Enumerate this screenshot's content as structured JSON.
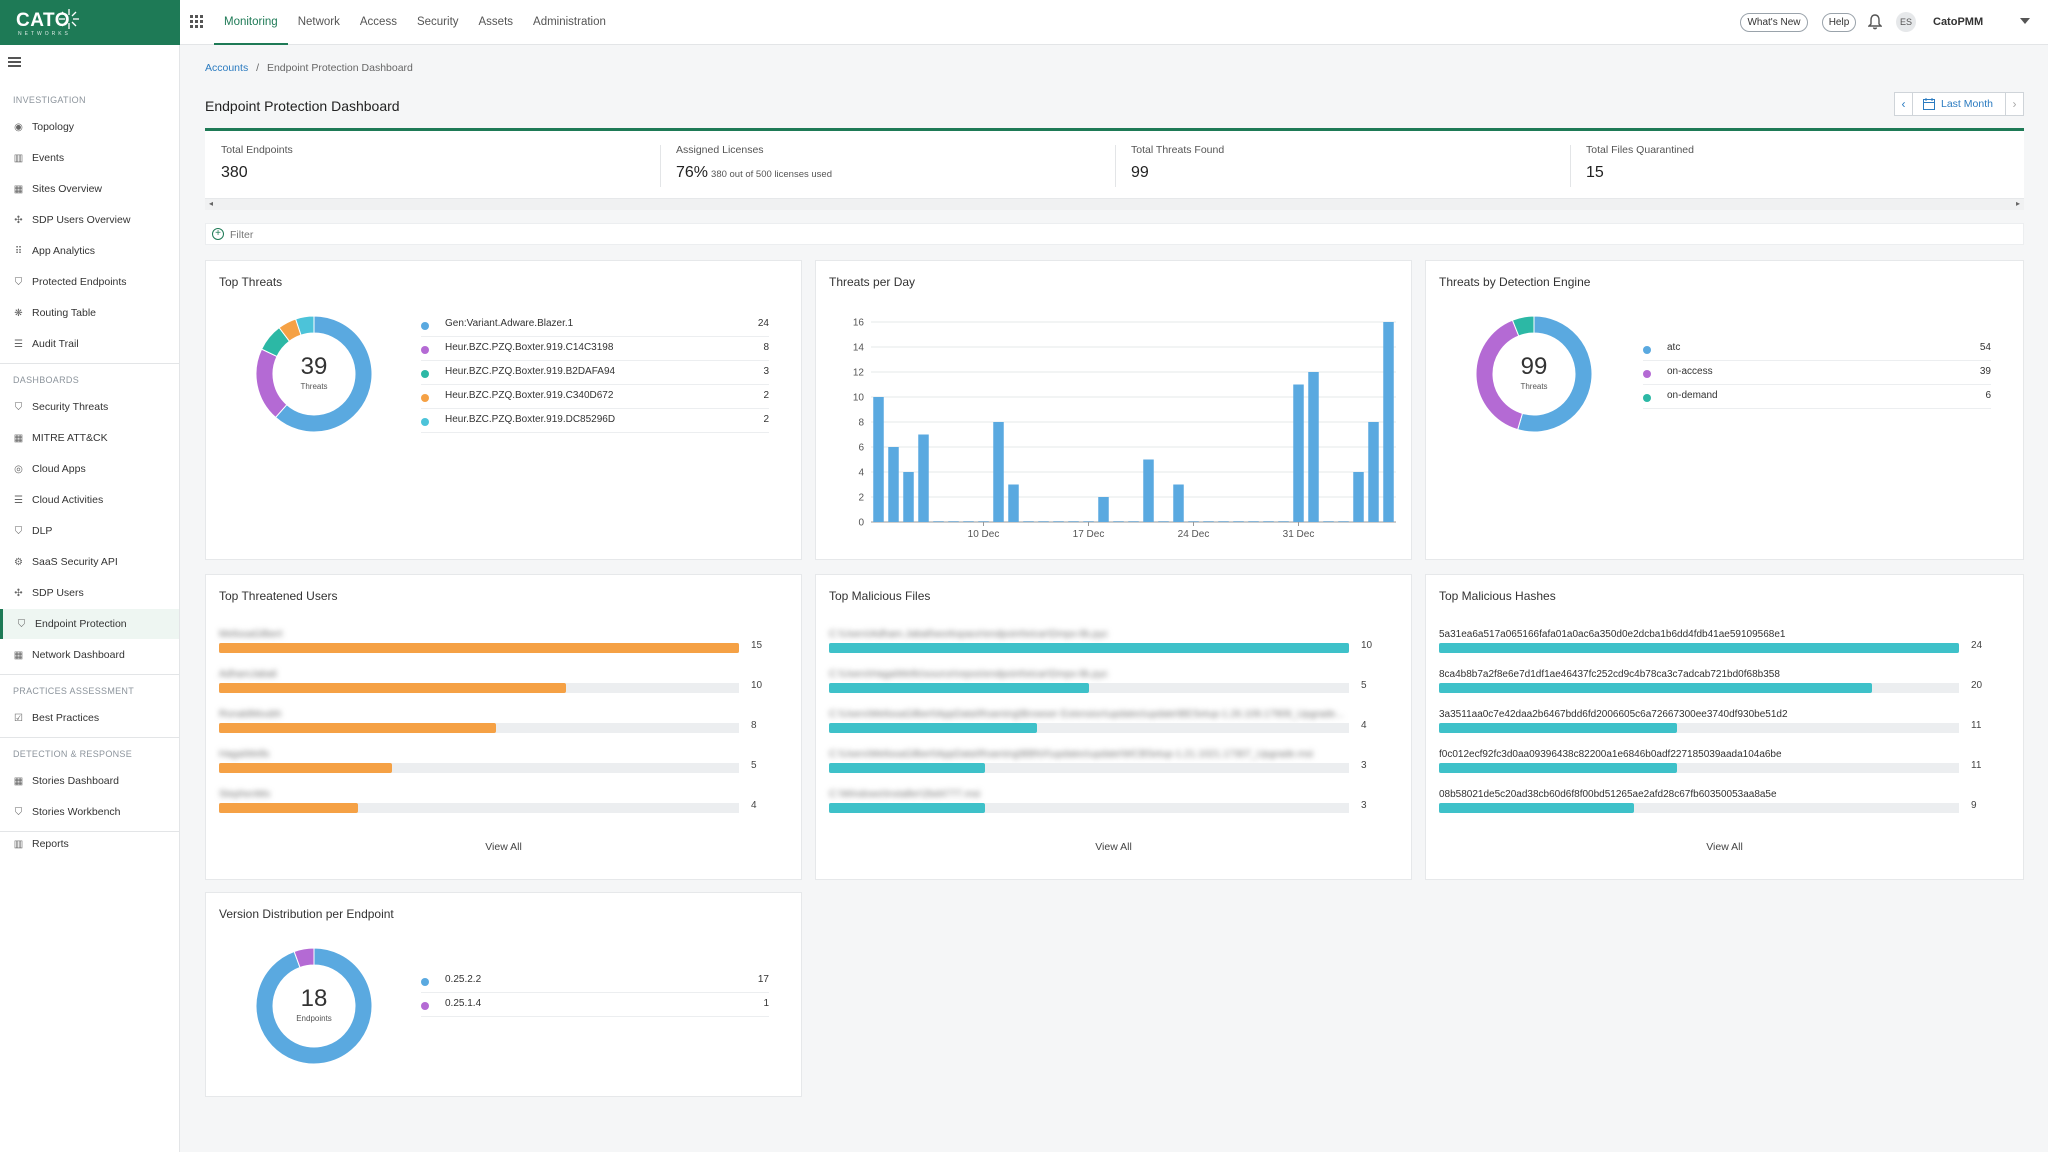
{
  "app": {
    "logo": "CATO",
    "logo_sub": "NETWORKS",
    "brand_color": "#1e7a56"
  },
  "topnav": {
    "items": [
      "Monitoring",
      "Network",
      "Access",
      "Security",
      "Assets",
      "Administration"
    ],
    "active": "Monitoring",
    "whats_new": "What's New",
    "help": "Help",
    "avatar_initials": "ES",
    "account": "CatoPMM"
  },
  "sidebar": {
    "sections": {
      "investigation": "INVESTIGATION",
      "dashboards": "DASHBOARDS",
      "practices": "PRACTICES ASSESSMENT",
      "detection": "DETECTION & RESPONSE"
    },
    "investigation_items": [
      "Topology",
      "Events",
      "Sites Overview",
      "SDP Users Overview",
      "App Analytics",
      "Protected Endpoints",
      "Routing Table",
      "Audit Trail"
    ],
    "dashboard_items": [
      "Security Threats",
      "MITRE ATT&CK",
      "Cloud Apps",
      "Cloud Activities",
      "DLP",
      "SaaS Security API",
      "SDP Users",
      "Endpoint Protection",
      "Network Dashboard"
    ],
    "practices_items": [
      "Best Practices"
    ],
    "detection_items": [
      "Stories Dashboard",
      "Stories Workbench"
    ],
    "reports": "Reports",
    "active": "Endpoint Protection"
  },
  "breadcrumb": {
    "root": "Accounts",
    "sep": "/",
    "current": "Endpoint Protection Dashboard"
  },
  "page": {
    "title": "Endpoint Protection Dashboard"
  },
  "time_range": {
    "label": "Last Month"
  },
  "kpis": {
    "total_endpoints": {
      "label": "Total Endpoints",
      "value": "380"
    },
    "assigned_licenses": {
      "label": "Assigned Licenses",
      "value": "76%",
      "sub": "380 out of 500 licenses used"
    },
    "total_threats": {
      "label": "Total Threats Found",
      "value": "99"
    },
    "files_quarantined": {
      "label": "Total Files Quarantined",
      "value": "15"
    }
  },
  "filter": {
    "label": "Filter"
  },
  "top_threats": {
    "title": "Top Threats",
    "center_value": "39",
    "center_label": "Threats",
    "items": [
      {
        "name": "Gen:Variant.Adware.Blazer.1",
        "value": 24,
        "color": "#5aa9e0"
      },
      {
        "name": "Heur.BZC.PZQ.Boxter.919.C14C3198",
        "value": 8,
        "color": "#b46ad4"
      },
      {
        "name": "Heur.BZC.PZQ.Boxter.919.B2DAFA94",
        "value": 3,
        "color": "#2cb8a5"
      },
      {
        "name": "Heur.BZC.PZQ.Boxter.919.C340D672",
        "value": 2,
        "color": "#f5a145"
      },
      {
        "name": "Heur.BZC.PZQ.Boxter.919.DC85296D",
        "value": 2,
        "color": "#4cc3d9"
      }
    ]
  },
  "threats_per_day": {
    "title": "Threats per Day"
  },
  "chart_data": {
    "type": "bar",
    "title": "Threats per Day",
    "x_ticks": [
      "10 Dec",
      "17 Dec",
      "24 Dec",
      "31 Dec"
    ],
    "x_tick_index": [
      7,
      14,
      21,
      28
    ],
    "values": [
      10,
      6,
      4,
      7,
      0,
      0,
      0,
      0,
      8,
      3,
      0,
      0,
      0,
      0,
      0,
      2,
      0,
      0,
      5,
      0,
      3,
      0,
      0,
      0,
      0,
      0,
      0,
      0,
      11,
      12,
      0,
      0,
      4,
      8,
      16
    ],
    "ylim": [
      0,
      16
    ],
    "y_ticks": [
      0,
      2,
      4,
      6,
      8,
      10,
      12,
      14,
      16
    ],
    "color": "#5aa9e0",
    "grid": true
  },
  "detection_engine": {
    "title": "Threats by Detection Engine",
    "center_value": "99",
    "center_label": "Threats",
    "items": [
      {
        "name": "atc",
        "value": 54,
        "color": "#5aa9e0"
      },
      {
        "name": "on-access",
        "value": 39,
        "color": "#b46ad4"
      },
      {
        "name": "on-demand",
        "value": 6,
        "color": "#2cb8a5"
      }
    ]
  },
  "threatened_users": {
    "title": "Top Threatened Users",
    "view_all": "View All",
    "color": "#f5a145",
    "max": 15,
    "items": [
      {
        "name": "MelissaGilbert",
        "value": 15
      },
      {
        "name": "AdhamJabali",
        "value": 10
      },
      {
        "name": "RonaldMoubh",
        "value": 8
      },
      {
        "name": "HagaiWells",
        "value": 5
      },
      {
        "name": "StephenMo",
        "value": 4
      }
    ]
  },
  "malicious_files": {
    "title": "Top Malicious Files",
    "view_all": "View All",
    "color": "#3ec1c9",
    "max": 10,
    "items": [
      {
        "name": "C:\\Users\\Adham.Jabali\\workspace\\endpoint\\eicar\\Dmpx-lib.pyc",
        "value": 10
      },
      {
        "name": "C:\\Users\\HagaiWells\\source\\repos\\endpoint\\eicar\\Dmpx-lib.pyc",
        "value": 5
      },
      {
        "name": "C:\\Users\\MelissaGilbert\\AppData\\Roaming\\Browser Extension\\updates\\update\\BESetup-1.26.109.17909_Upgrade...",
        "value": 4
      },
      {
        "name": "C:\\Users\\MelissaGilbert\\AppData\\Roaming\\BBNX\\updates\\update\\WCBSetup-1.21.1021.17307_Upgrade.msi",
        "value": 3
      },
      {
        "name": "C:\\Windows\\Installer\\2bd4777.msi",
        "value": 3
      }
    ]
  },
  "malicious_hashes": {
    "title": "Top Malicious Hashes",
    "view_all": "View All",
    "color": "#3ec1c9",
    "max": 24,
    "items": [
      {
        "name": "5a31ea6a517a065166fafa01a0ac6a350d0e2dcba1b6dd4fdb41ae59109568e1",
        "value": 24
      },
      {
        "name": "8ca4b8b7a2f8e6e7d1df1ae46437fc252cd9c4b78ca3c7adcab721bd0f68b358",
        "value": 20
      },
      {
        "name": "3a3511aa0c7e42daa2b6467bdd6fd2006605c6a72667300ee3740df930be51d2",
        "value": 11
      },
      {
        "name": "f0c012ecf92fc3d0aa09396438c82200a1e6846b0adf227185039aada104a6be",
        "value": 11
      },
      {
        "name": "08b58021de5c20ad38cb60d6f8f00bd51265ae2afd28c67fb60350053aa8a5e",
        "value": 9
      }
    ]
  },
  "version_distribution": {
    "title": "Version Distribution per Endpoint",
    "center_value": "18",
    "center_label": "Endpoints",
    "items": [
      {
        "name": "0.25.2.2",
        "value": 17,
        "color": "#5aa9e0"
      },
      {
        "name": "0.25.1.4",
        "value": 1,
        "color": "#b46ad4"
      }
    ]
  }
}
